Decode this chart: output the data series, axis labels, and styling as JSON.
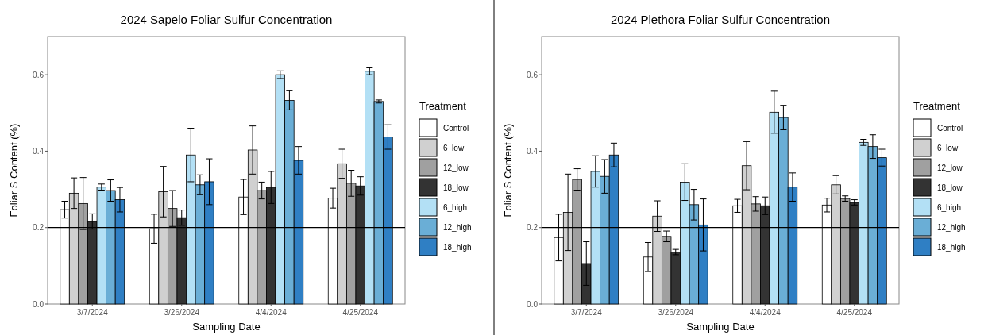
{
  "chart_data": [
    {
      "type": "bar",
      "title": "2024 Sapelo Foliar Sulfur Concentration",
      "xlabel": "Sampling Date",
      "ylabel": "Foliar S Content (%)",
      "legend_title": "Treatment",
      "legend": "right",
      "categories": [
        "3/7/2024",
        "3/26/2024",
        "4/4/2024",
        "4/25/2024"
      ],
      "ylim": [
        0,
        0.7
      ],
      "yticks": [
        {
          "value": 0,
          "label": "0.0"
        },
        {
          "value": 0.2,
          "label": "0.2"
        },
        {
          "value": 0.4,
          "label": "0.4"
        },
        {
          "value": 0.6,
          "label": "0.6"
        }
      ],
      "ref_lines": [
        {
          "axis": "y",
          "value": 0.2,
          "color": "#000000"
        }
      ],
      "series": [
        {
          "name": "Control",
          "color": "#ffffff",
          "values": [
            0.247,
            0.197,
            0.28,
            0.277
          ],
          "errors": [
            0.022,
            0.038,
            0.046,
            0.026
          ]
        },
        {
          "name": "6_low",
          "color": "#d0d0d0",
          "values": [
            0.29,
            0.294,
            0.403,
            0.367
          ],
          "errors": [
            0.04,
            0.066,
            0.063,
            0.038
          ]
        },
        {
          "name": "12_low",
          "color": "#a0a0a0",
          "values": [
            0.263,
            0.25,
            0.297,
            0.316
          ],
          "errors": [
            0.068,
            0.047,
            0.022,
            0.034
          ]
        },
        {
          "name": "18_low",
          "color": "#333333",
          "values": [
            0.216,
            0.226,
            0.305,
            0.309
          ],
          "errors": [
            0.02,
            0.02,
            0.042,
            0.024
          ]
        },
        {
          "name": "6_high",
          "color": "#b3e0f5",
          "values": [
            0.306,
            0.39,
            0.6,
            0.609
          ],
          "errors": [
            0.008,
            0.07,
            0.01,
            0.009
          ]
        },
        {
          "name": "12_high",
          "color": "#6aaed6",
          "values": [
            0.297,
            0.312,
            0.533,
            0.53
          ],
          "errors": [
            0.028,
            0.026,
            0.025,
            0.004
          ]
        },
        {
          "name": "18_high",
          "color": "#2f7fc4",
          "values": [
            0.273,
            0.32,
            0.376,
            0.437
          ],
          "errors": [
            0.032,
            0.06,
            0.036,
            0.032
          ]
        }
      ]
    },
    {
      "type": "bar",
      "title": "2024 Plethora Foliar Sulfur Concentration",
      "xlabel": "Sampling Date",
      "ylabel": "Foliar S Content (%)",
      "legend_title": "Treatment",
      "legend": "right",
      "categories": [
        "3/7/2024",
        "3/26/2024",
        "4/4/2024",
        "4/25/2024"
      ],
      "ylim": [
        0,
        0.7
      ],
      "yticks": [
        {
          "value": 0,
          "label": "0.0"
        },
        {
          "value": 0.2,
          "label": "0.2"
        },
        {
          "value": 0.4,
          "label": "0.4"
        },
        {
          "value": 0.6,
          "label": "0.6"
        }
      ],
      "ref_lines": [
        {
          "axis": "y",
          "value": 0.2,
          "color": "#000000"
        }
      ],
      "series": [
        {
          "name": "Control",
          "color": "#ffffff",
          "values": [
            0.174,
            0.123,
            0.257,
            0.259
          ],
          "errors": [
            0.061,
            0.038,
            0.017,
            0.018
          ]
        },
        {
          "name": "6_low",
          "color": "#d0d0d0",
          "values": [
            0.24,
            0.23,
            0.362,
            0.312
          ],
          "errors": [
            0.1,
            0.04,
            0.063,
            0.024
          ]
        },
        {
          "name": "12_low",
          "color": "#a0a0a0",
          "values": [
            0.326,
            0.177,
            0.262,
            0.276
          ],
          "errors": [
            0.028,
            0.014,
            0.019,
            0.007
          ]
        },
        {
          "name": "18_low",
          "color": "#333333",
          "values": [
            0.106,
            0.136,
            0.257,
            0.266
          ],
          "errors": [
            0.057,
            0.007,
            0.023,
            0.007
          ]
        },
        {
          "name": "6_high",
          "color": "#b3e0f5",
          "values": [
            0.347,
            0.319,
            0.502,
            0.423
          ],
          "errors": [
            0.041,
            0.048,
            0.055,
            0.008
          ]
        },
        {
          "name": "12_high",
          "color": "#6aaed6",
          "values": [
            0.334,
            0.26,
            0.488,
            0.412
          ],
          "errors": [
            0.044,
            0.04,
            0.032,
            0.031
          ]
        },
        {
          "name": "18_high",
          "color": "#2f7fc4",
          "values": [
            0.39,
            0.207,
            0.306,
            0.383
          ],
          "errors": [
            0.031,
            0.068,
            0.037,
            0.022
          ]
        }
      ]
    }
  ]
}
